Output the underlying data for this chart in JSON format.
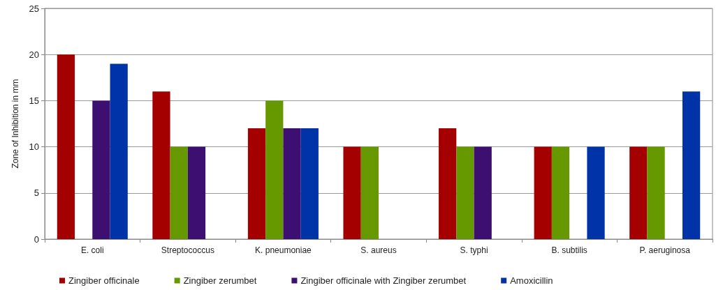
{
  "chart_data": {
    "type": "bar",
    "ylabel": "Zone of Inhibition in mm",
    "categories": [
      "E. coli",
      "Streptococcus",
      "K. pneumoniae",
      "S. aureus",
      "S. typhi",
      "B. subtilis",
      "P. aeruginosa"
    ],
    "series": [
      {
        "name": "Zingiber officinale",
        "color": "#a50000",
        "values": [
          20,
          16,
          12,
          10,
          12,
          10,
          10
        ]
      },
      {
        "name": "Zingiber zerumbet",
        "color": "#669900",
        "values": [
          null,
          10,
          15,
          10,
          10,
          10,
          10
        ]
      },
      {
        "name": "Zingiber officinale with Zingiber zerumbet",
        "color": "#3c0f70",
        "values": [
          15,
          10,
          12,
          null,
          10,
          null,
          null
        ]
      },
      {
        "name": "Amoxicillin",
        "color": "#0033a8",
        "values": [
          19,
          null,
          12,
          null,
          null,
          10,
          16
        ]
      }
    ],
    "ylim": [
      0,
      25
    ],
    "yticks": [
      0,
      5,
      10,
      15,
      20,
      25
    ],
    "grid": "y",
    "legend": "bottom"
  }
}
